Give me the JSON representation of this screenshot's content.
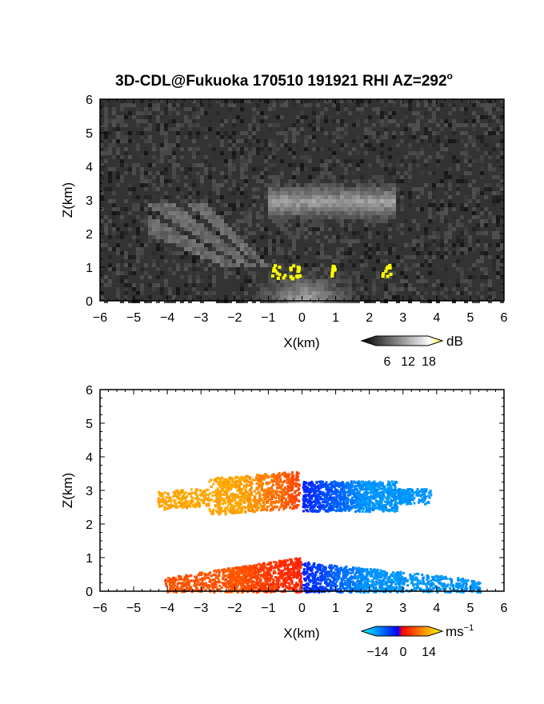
{
  "chart_data": [
    {
      "type": "heatmap",
      "title": "3D-CDL@Fukuoka 170510 191921 RHI AZ=292",
      "title_sup": "o",
      "xlabel": "X(km)",
      "ylabel": "Z(km)",
      "xlim": [
        -6,
        6
      ],
      "ylim": [
        0,
        6
      ],
      "xticks": [
        "−6",
        "−5",
        "−4",
        "−3",
        "−2",
        "−1",
        "0",
        "1",
        "2",
        "3",
        "4",
        "5",
        "6"
      ],
      "yticks": [
        "0",
        "1",
        "2",
        "3",
        "4",
        "5",
        "6"
      ],
      "colorbar": {
        "unit": "dB",
        "ticks": [
          "6",
          "12",
          "18"
        ],
        "range": [
          0,
          20
        ]
      },
      "regions": [
        {
          "name": "noise background",
          "xlim": [
            -6,
            6
          ],
          "zlim": [
            0,
            6
          ],
          "level_db": 3
        },
        {
          "name": "cloud layer",
          "xlim": [
            -1.0,
            2.8
          ],
          "zlim": [
            2.3,
            3.6
          ],
          "level_db": 12
        },
        {
          "name": "boundary layer",
          "xlim": [
            -1.0,
            1.2
          ],
          "zlim": [
            0,
            0.9
          ],
          "level_db": 14
        },
        {
          "name": "saturated echoes",
          "xlim": [
            -1.0,
            -0.1
          ],
          "zlim": [
            0.7,
            1.1
          ],
          "level_db": 20
        }
      ]
    },
    {
      "type": "heatmap",
      "title": "",
      "xlabel": "X(km)",
      "ylabel": "Z(km)",
      "xlim": [
        -6,
        6
      ],
      "ylim": [
        0,
        6
      ],
      "xticks": [
        "−6",
        "−5",
        "−4",
        "−3",
        "−2",
        "−1",
        "0",
        "1",
        "2",
        "3",
        "4",
        "5",
        "6"
      ],
      "yticks": [
        "0",
        "1",
        "2",
        "3",
        "4",
        "5",
        "6"
      ],
      "colorbar": {
        "unit": "ms",
        "unit_sup": "−1",
        "ticks": [
          "−14",
          "0",
          "14"
        ],
        "range": [
          -16,
          16
        ]
      },
      "regions": [
        {
          "name": "upper layer approaching",
          "xlim": [
            -4.3,
            -0.1
          ],
          "zlim": [
            2.0,
            3.8
          ],
          "velocity": 10
        },
        {
          "name": "upper layer receding",
          "xlim": [
            0.0,
            3.8
          ],
          "zlim": [
            2.0,
            3.7
          ],
          "velocity": -10
        },
        {
          "name": "lower layer approaching",
          "xlim": [
            -4.1,
            -0.05
          ],
          "zlim": [
            0,
            1.05
          ],
          "velocity": 5
        },
        {
          "name": "lower layer receding",
          "xlim": [
            0.0,
            5.3
          ],
          "zlim": [
            0,
            0.9
          ],
          "velocity": -10
        }
      ]
    }
  ]
}
